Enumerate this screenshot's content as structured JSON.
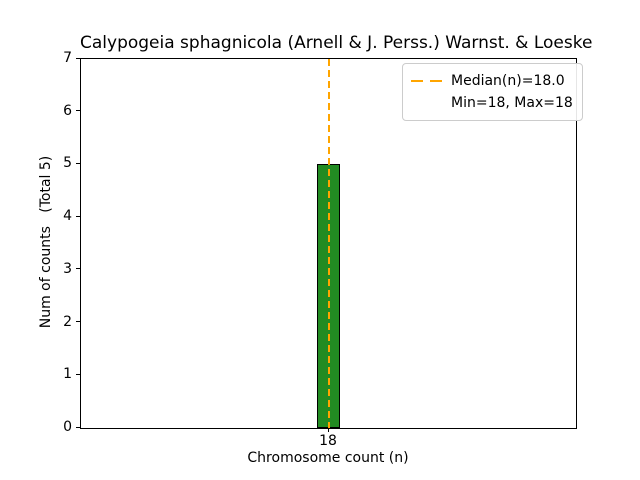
{
  "figure": {
    "title": "Calypogeia sphagnicola (Arnell & J. Perss.) Warnst. & Loeske"
  },
  "chart_data": {
    "type": "bar",
    "title": "Calypogeia sphagnicola (Arnell & J. Perss.) Warnst. & Loeske",
    "xlabel": "Chromosome count (n)",
    "ylabel": "Num of counts   (Total 5)",
    "categories": [
      "18"
    ],
    "values": [
      5
    ],
    "total_counts": 5,
    "ylim": [
      0,
      7
    ],
    "yticks": [
      0,
      1,
      2,
      3,
      4,
      5,
      6,
      7
    ],
    "xticks": [
      "18"
    ],
    "median_n": "18.0",
    "min_n": 18,
    "max_n": 18,
    "grid": false,
    "colors": {
      "bar_fill": "#228B22",
      "bar_edge": "#000000",
      "median_line": "#FFA500",
      "spine": "#000000",
      "legend_border": "#cccccc"
    },
    "legend": {
      "position": "upper right",
      "entries": [
        {
          "label": "Median(n)=18.0",
          "marker": "orange-dashed-line"
        },
        {
          "label": "Min=18, Max=18",
          "marker": "none"
        }
      ]
    }
  }
}
